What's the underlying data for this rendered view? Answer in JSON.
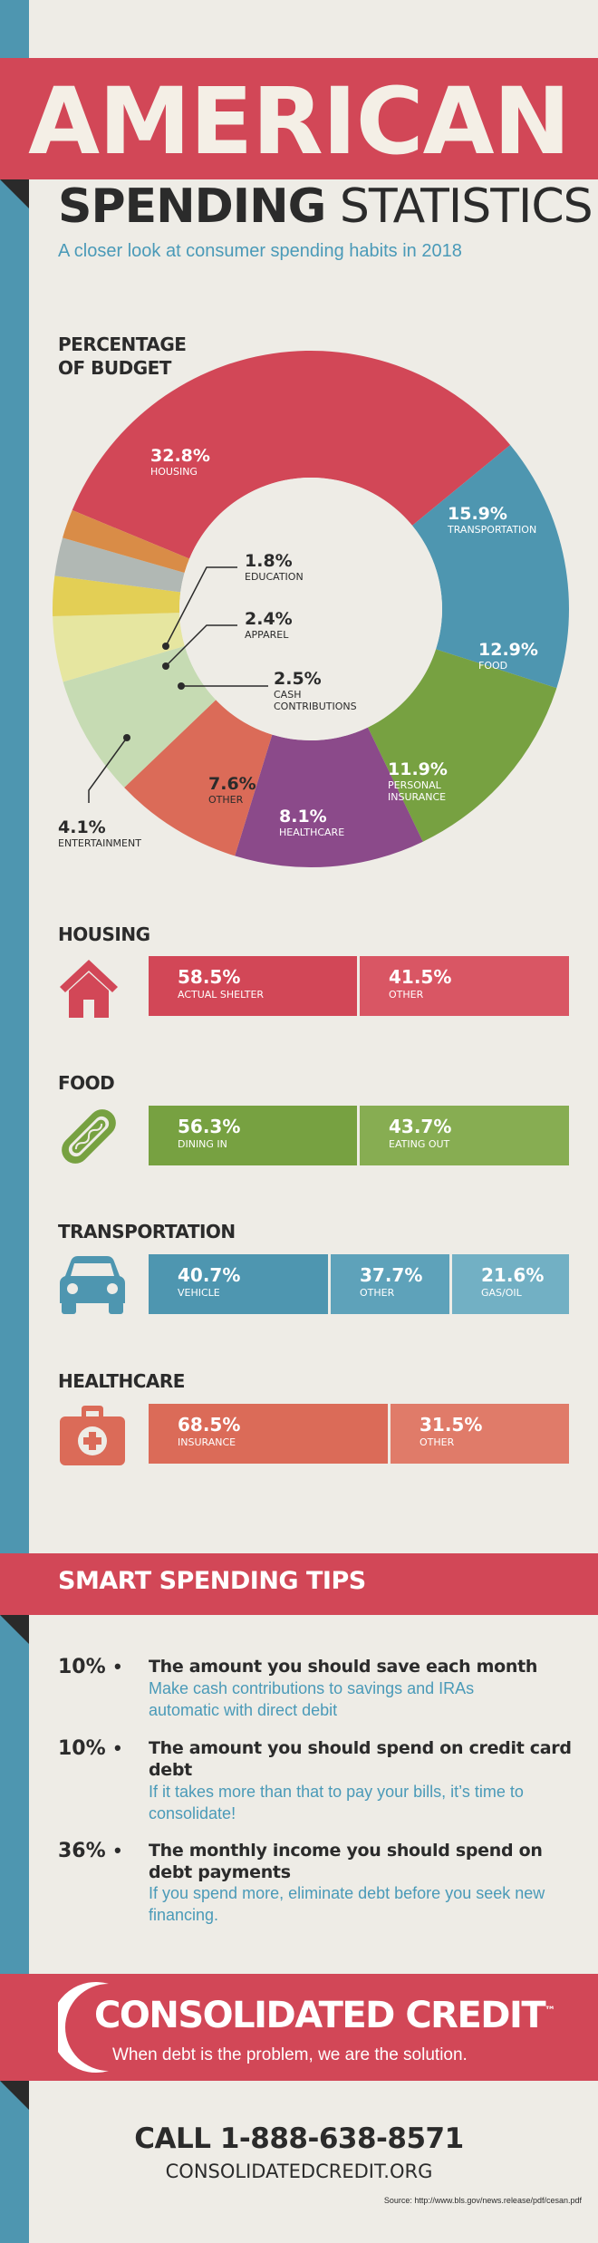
{
  "header": {
    "title": "AMERICAN",
    "subtitle_bold": "SPENDING",
    "subtitle_rest": "STATISTICS",
    "tagline": "A closer look at consumer spending habits in 2018"
  },
  "colors": {
    "red": "#d24757",
    "blue": "#4e96b0",
    "green": "#77a141",
    "purple": "#8b4a8a",
    "coral": "#db6b58",
    "paper": "#eeece6",
    "dark": "#2b2b2b"
  },
  "budget": {
    "title_line1": "PERCENTAGE",
    "title_line2": "OF BUDGET",
    "segments": [
      {
        "value": "32.8%",
        "name": "HOUSING",
        "pct": 32.8,
        "color": "#d24757"
      },
      {
        "value": "15.9%",
        "name": "TRANSPORTATION",
        "pct": 15.9,
        "color": "#4e96b0"
      },
      {
        "value": "12.9%",
        "name": "FOOD",
        "pct": 12.9,
        "color": "#77a141"
      },
      {
        "value": "11.9%",
        "name": "PERSONAL",
        "name2": "INSURANCE",
        "pct": 11.9,
        "color": "#8b4a8a"
      },
      {
        "value": "8.1%",
        "name": "HEALTHCARE",
        "pct": 8.1,
        "color": "#db6b58"
      },
      {
        "value": "7.6%",
        "name": "OTHER",
        "pct": 7.6,
        "color": "#c6dbb3"
      },
      {
        "value": "4.1%",
        "name": "ENTERTAINMENT",
        "pct": 4.1,
        "color": "#e6e6a0"
      },
      {
        "value": "2.5%",
        "name": "CASH",
        "name2": "CONTRIBUTIONS",
        "pct": 2.5,
        "color": "#e3cf55"
      },
      {
        "value": "2.4%",
        "name": "APPAREL",
        "pct": 2.4,
        "color": "#b1b8b4"
      },
      {
        "value": "1.8%",
        "name": "EDUCATION",
        "pct": 1.8,
        "color": "#d98c47"
      }
    ]
  },
  "categories": {
    "housing": {
      "title": "HOUSING",
      "segments": [
        {
          "value": "58.5%",
          "name": "ACTUAL SHELTER"
        },
        {
          "value": "41.5%",
          "name": "OTHER"
        }
      ]
    },
    "food": {
      "title": "FOOD",
      "segments": [
        {
          "value": "56.3%",
          "name": "DINING IN"
        },
        {
          "value": "43.7%",
          "name": "EATING OUT"
        }
      ]
    },
    "transportation": {
      "title": "TRANSPORTATION",
      "segments": [
        {
          "value": "40.7%",
          "name": "VEHICLE"
        },
        {
          "value": "37.7%",
          "name": "OTHER"
        },
        {
          "value": "21.6%",
          "name": "GAS/OIL"
        }
      ]
    },
    "healthcare": {
      "title": "HEALTHCARE",
      "segments": [
        {
          "value": "68.5%",
          "name": "INSURANCE"
        },
        {
          "value": "31.5%",
          "name": "OTHER"
        }
      ]
    }
  },
  "tips": {
    "title": "SMART SPENDING TIPS",
    "bullet": "•",
    "items": [
      {
        "pct": "10%",
        "head": "The amount you should save each month",
        "body": "Make cash contributions to savings and IRAs automatic with direct debit"
      },
      {
        "pct": "10%",
        "head": "The amount you should spend on credit card debt",
        "body": "If it takes more than that to pay your bills, it’s time to consolidate!"
      },
      {
        "pct": "36%",
        "head": "The monthly income you should spend on debt payments",
        "body": "If you spend more, eliminate debt before you seek new financing."
      }
    ]
  },
  "footer": {
    "brand": "CONSOLIDATED CREDIT",
    "trademark": "™",
    "tagline": "When debt is the problem, we are the solution.",
    "phone": "CALL 1-888-638-8571",
    "website": "CONSOLIDATEDCREDIT.ORG",
    "source": "Source: http://www.bls.gov/news.release/pdf/cesan.pdf"
  }
}
